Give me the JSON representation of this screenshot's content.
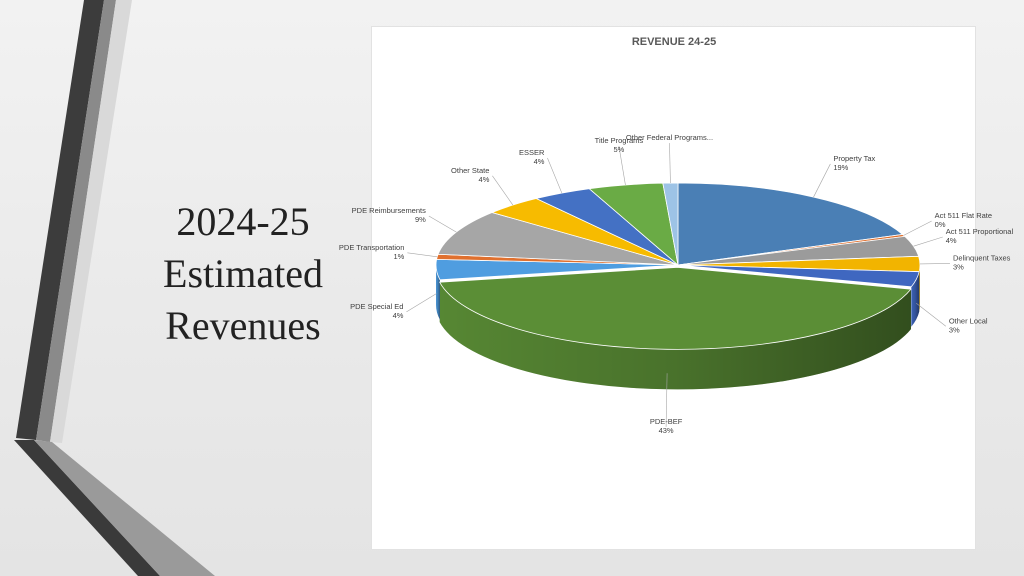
{
  "slide": {
    "title_lines": [
      "2024-25",
      "Estimated",
      "Revenues"
    ]
  },
  "chart_data": {
    "type": "pie",
    "title": "REVENUE 24-25",
    "three_d": true,
    "slices": [
      {
        "label": "Property Tax",
        "value": 19,
        "pct": "19%",
        "color": "#4a7fb5"
      },
      {
        "label": "Act 511 Flat Rate",
        "value": 0.4,
        "pct": "0%",
        "color": "#e0702e"
      },
      {
        "label": "Act 511 Proportional",
        "value": 4,
        "pct": "4%",
        "color": "#9b9b9b"
      },
      {
        "label": "Delinquent Taxes",
        "value": 3,
        "pct": "3%",
        "color": "#f2b400"
      },
      {
        "label": "Other Local",
        "value": 3,
        "pct": "3%",
        "color": "#3f67c0"
      },
      {
        "label": "PDE-BEF",
        "value": 43,
        "pct": "43%",
        "color": "#5b8e36"
      },
      {
        "label": "PDE Special Ed",
        "value": 4,
        "pct": "4%",
        "color": "#4f9de0"
      },
      {
        "label": "PDE Transportation",
        "value": 1,
        "pct": "1%",
        "color": "#e0702e"
      },
      {
        "label": "PDE Reimbursements",
        "value": 9,
        "pct": "9%",
        "color": "#a6a6a6"
      },
      {
        "label": "Other State",
        "value": 4,
        "pct": "4%",
        "color": "#f7bb00"
      },
      {
        "label": "ESSER",
        "value": 4,
        "pct": "4%",
        "color": "#4471c4"
      },
      {
        "label": "Title Programs",
        "value": 5,
        "pct": "5%",
        "color": "#6aab45"
      },
      {
        "label": "Other Federal Programs...",
        "value": 1,
        "pct": "",
        "color": "#9dc3e6"
      }
    ]
  }
}
